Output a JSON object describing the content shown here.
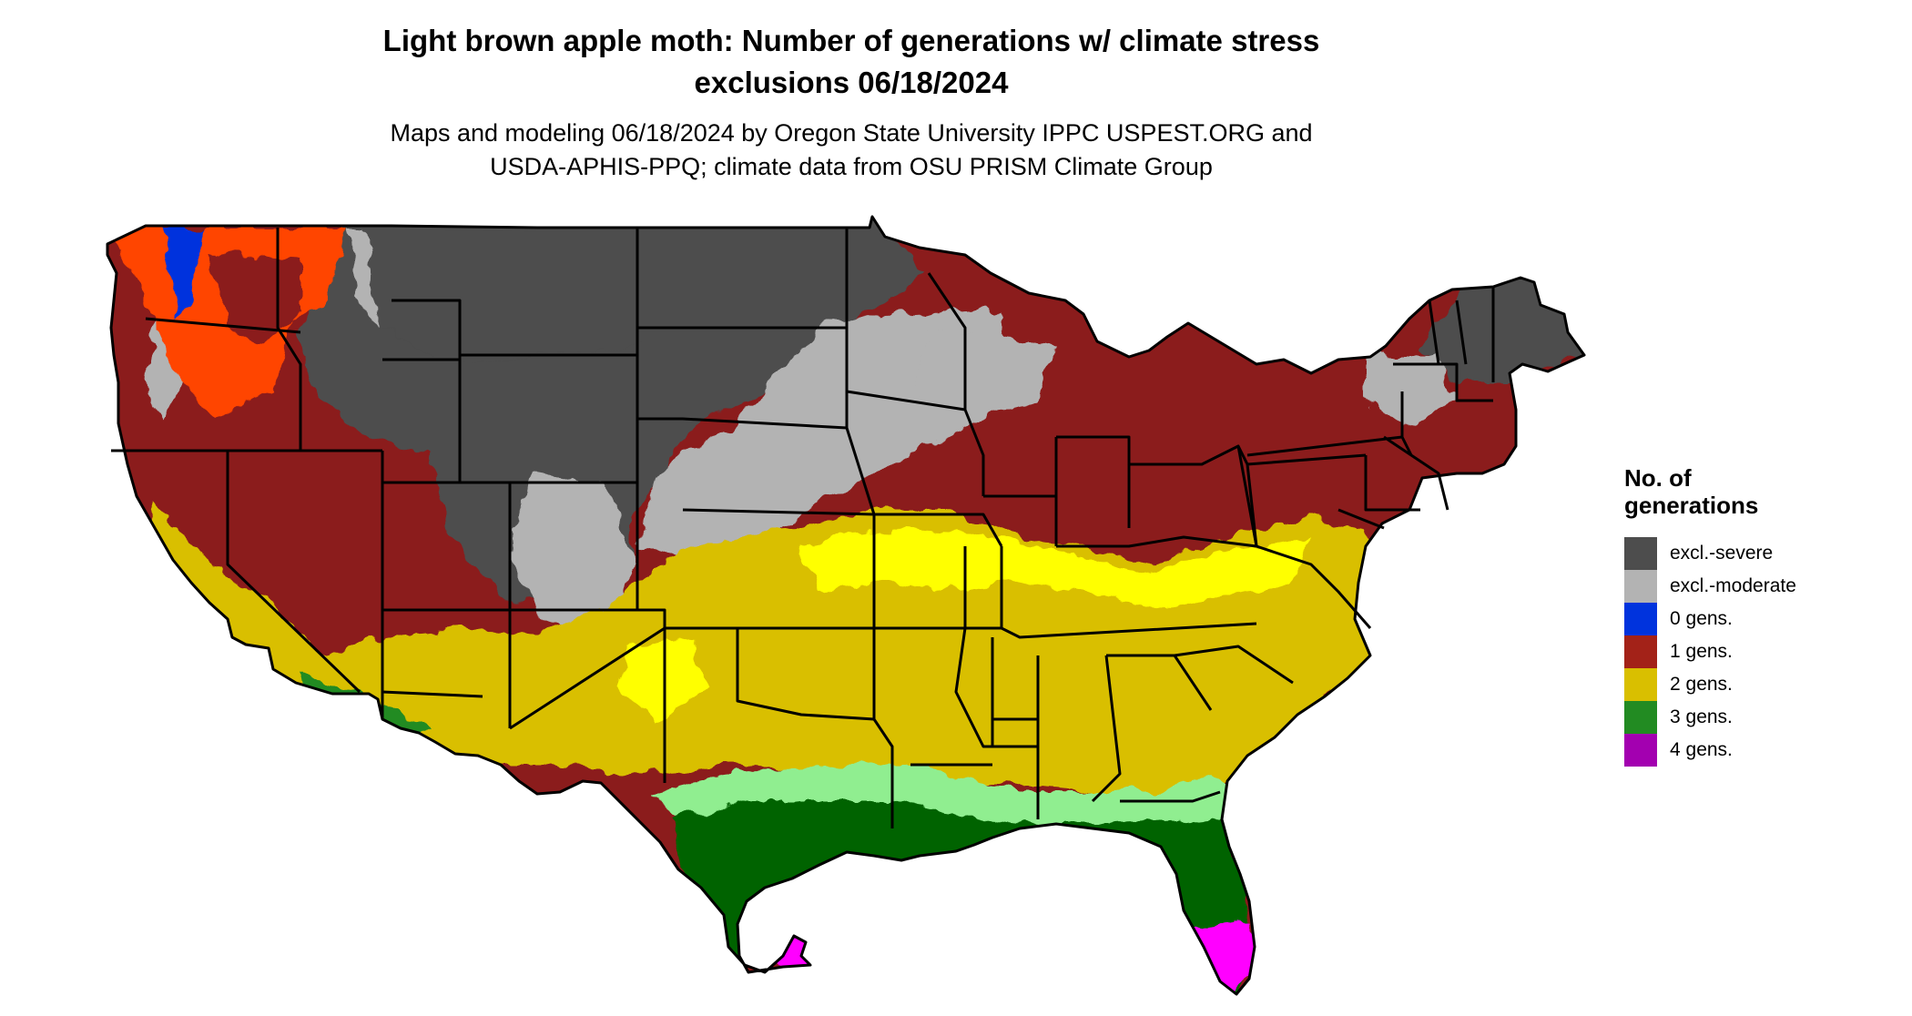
{
  "map": {
    "title_line1": "Light brown apple moth: Number of generations w/ climate stress",
    "title_line2": "exclusions 06/18/2024",
    "subtitle_line1": "Maps and modeling 06/18/2024 by Oregon State University IPPC USPEST.ORG and",
    "subtitle_line2": "USDA-APHIS-PPQ; climate data from OSU PRISM Climate Group"
  },
  "legend": {
    "title_line1": "No. of",
    "title_line2": "generations",
    "items": [
      {
        "label": "excl.-severe",
        "color": "#4d4d4d"
      },
      {
        "label": "excl.-moderate",
        "color": "#b3b3b3"
      },
      {
        "label": "0 gens.",
        "color": "#0033dd"
      },
      {
        "label": "1 gens.",
        "color": "#a32218"
      },
      {
        "label": "2 gens.",
        "color": "#d9bf00"
      },
      {
        "label": "3 gens.",
        "color": "#228b22"
      },
      {
        "label": "4 gens.",
        "color": "#a300b0"
      }
    ]
  },
  "colors": {
    "border": "#000000",
    "red_light": "#ff4500",
    "yellow_bright": "#ffff00",
    "green_light": "#90ee90",
    "green_dark": "#006400",
    "magenta": "#ff00ff"
  }
}
